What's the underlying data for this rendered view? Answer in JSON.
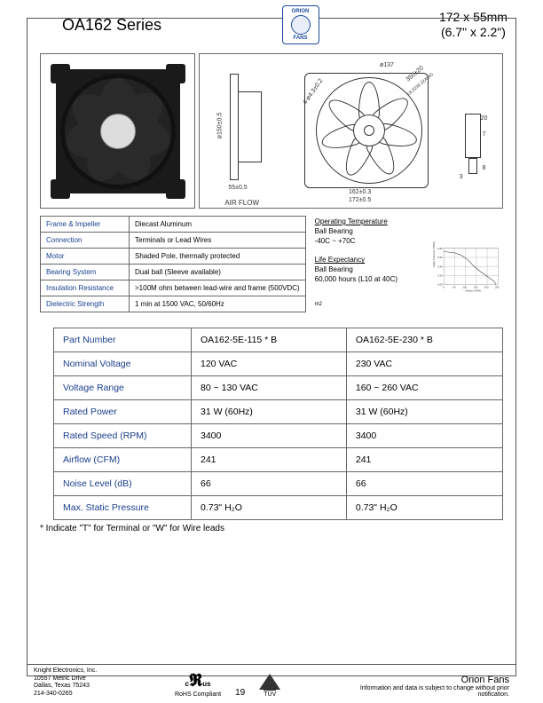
{
  "header": {
    "series": "OA162 Series",
    "dims_mm": "172 x 55mm",
    "dims_in": "(6.7\" x 2.2\")",
    "logo_top": "ORION",
    "logo_bottom": "FANS"
  },
  "drawing_labels": {
    "height": "ø150±0.5",
    "width_plate": "55±0.5",
    "airflow": "AIR FLOW",
    "diam_small": "ø137",
    "hole": "4-ø4.3±0.2",
    "lead": "350±20",
    "leadspec": "UL3239  22AWG",
    "w162": "162±0.3",
    "w172": "172±0.5",
    "t20": "20",
    "t7": "7",
    "t3": "3",
    "t8": "8"
  },
  "spec": {
    "rows": [
      {
        "label": "Frame & Impeller",
        "value": "Diecast Aluminum"
      },
      {
        "label": "Connection",
        "value": "Terminals or Lead Wires"
      },
      {
        "label": "Motor",
        "value": "Shaded Pole, thermally protected"
      },
      {
        "label": "Bearing System",
        "value": "Dual ball (Sleeve available)"
      },
      {
        "label": "Insulation Resistance",
        "value": ">100M ohm between lead-wire and frame (500VDC)"
      },
      {
        "label": "Dielectric Strength",
        "value": "1 min at 1500 VAC, 50/60Hz"
      }
    ],
    "notes": {
      "op_temp_label": "Operating Temperature",
      "op_temp_value": "Ball Bearing\n-40C ~ +70C",
      "life_label": "Life Expectancy",
      "life_value": "Ball Bearing\n60,000 hours (L10 at 40C)",
      "m2": "m2"
    }
  },
  "chart": {
    "type": "line",
    "xlabel": "Airflow (CFM)",
    "ylabel": "Static Pressure (\"H2O)",
    "xlim": [
      0,
      250
    ],
    "xtick_step": 50,
    "ylim": [
      0,
      0.8
    ],
    "yticks": [
      "0.00",
      "0.20",
      "0.40",
      "0.60",
      "0.80"
    ],
    "line_color": "#333333",
    "grid_color": "#333333",
    "background_color": "#ffffff",
    "points_cfm_psi": [
      [
        0,
        0.73
      ],
      [
        50,
        0.7
      ],
      [
        80,
        0.65
      ],
      [
        110,
        0.55
      ],
      [
        140,
        0.4
      ],
      [
        170,
        0.28
      ],
      [
        200,
        0.18
      ],
      [
        230,
        0.08
      ],
      [
        241,
        0.0
      ]
    ]
  },
  "main": {
    "rows": [
      {
        "label": "Part Number",
        "a": "OA162-5E-115 * B",
        "b": "OA162-5E-230 * B"
      },
      {
        "label": "Nominal Voltage",
        "a": "120 VAC",
        "b": "230 VAC"
      },
      {
        "label": "Voltage Range",
        "a": "80 ~ 130 VAC",
        "b": "160 ~ 260 VAC"
      },
      {
        "label": "Rated Power",
        "a": "31 W (60Hz)",
        "b": "31 W (60Hz)"
      },
      {
        "label": "Rated Speed (RPM)",
        "a": "3400",
        "b": "3400"
      },
      {
        "label": "Airflow (CFM)",
        "a": "241",
        "b": "241"
      },
      {
        "label": "Noise Level (dB)",
        "a": "66",
        "b": "66"
      },
      {
        "label": "Max. Static Pressure",
        "a": "0.73\" H₂O",
        "b": "0.73\" H₂O"
      }
    ],
    "footnote": "* Indicate \"T\" for Terminal or \"W\" for Wire leads"
  },
  "footer": {
    "company": "Knight Electronics, Inc.",
    "addr1": "10557 Metric Drive",
    "addr2": "Dallas, Texas 75243",
    "phone": "214-340-0265",
    "rohs": "RoHS Compliant",
    "page": "19",
    "tuv": "TÜV",
    "brand": "Orion Fans",
    "disclaimer": "Information and data is subject to change without prior notification.",
    "ul_c": "c",
    "ul_us": "us"
  }
}
